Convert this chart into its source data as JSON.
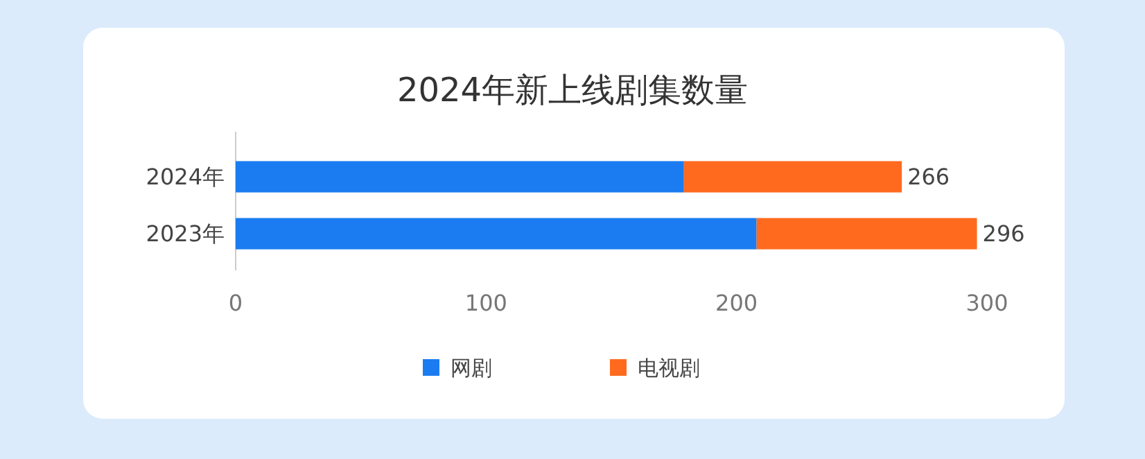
{
  "chart_data": {
    "type": "bar",
    "orientation": "horizontal",
    "stacked": true,
    "title": "2024年新上线剧集数量",
    "categories": [
      "2024年",
      "2023年"
    ],
    "series": [
      {
        "name": "网剧",
        "color": "#1a7cf0",
        "values": [
          179,
          208
        ]
      },
      {
        "name": "电视剧",
        "color": "#ff6a1f",
        "values": [
          87,
          88
        ]
      }
    ],
    "totals": [
      "266",
      "296"
    ],
    "xlim": [
      0,
      300
    ],
    "xticks": [
      0,
      100,
      200,
      300
    ],
    "grid": false,
    "legend": "bottom"
  }
}
